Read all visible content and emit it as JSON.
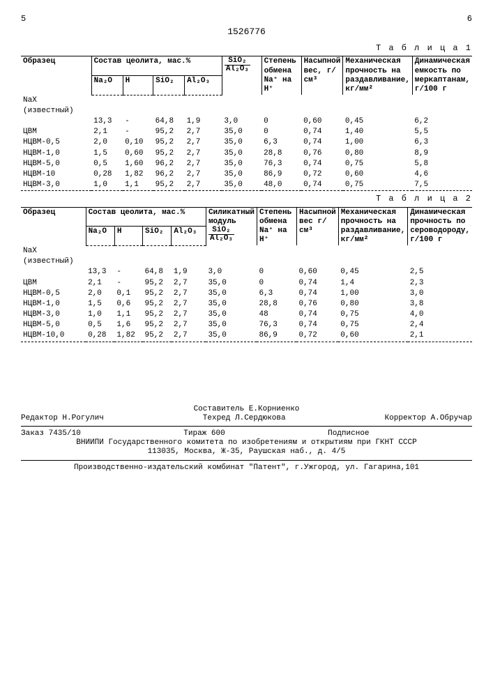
{
  "page_left": "5",
  "page_right": "6",
  "doc_number": "1526776",
  "table1": {
    "label": "Т а б л и ц а 1",
    "headers": {
      "sample": "Образец",
      "composition": "Состав цеолита, мас.%",
      "na2o": "Na₂O",
      "h": "H",
      "sio2": "SiO₂",
      "al2o3": "Al₂O₃",
      "ratio_num": "SiO₂",
      "ratio_den": "Al₂O₃",
      "exchange": "Степень обмена Na⁺ на H⁺",
      "bulk": "Насыпной вес, г/см³",
      "strength": "Механическая прочность на раздавливание, кг/мм²",
      "capacity": "Динамическая емкость по меркаптанам, г/100 г"
    },
    "row_label_nax": "NaX",
    "row_label_known": "(известный)",
    "rows": [
      {
        "s": "",
        "na": "13,3",
        "h": "-",
        "si": "64,8",
        "al": "1,9",
        "r": "3,0",
        "e": "0",
        "b": "0,60",
        "m": "0,45",
        "c": "6,2"
      },
      {
        "s": "ЦВМ",
        "na": "2,1",
        "h": "-",
        "si": "95,2",
        "al": "2,7",
        "r": "35,0",
        "e": "0",
        "b": "0,74",
        "m": "1,40",
        "c": "5,5"
      },
      {
        "s": "НЦВМ-0,5",
        "na": "2,0",
        "h": "0,10",
        "si": "95,2",
        "al": "2,7",
        "r": "35,0",
        "e": "6,3",
        "b": "0,74",
        "m": "1,00",
        "c": "6,3"
      },
      {
        "s": "НЦВМ-1,0",
        "na": "1,5",
        "h": "0,60",
        "si": "95,2",
        "al": "2,7",
        "r": "35,0",
        "e": "28,8",
        "b": "0,76",
        "m": "0,80",
        "c": "8,9"
      },
      {
        "s": "НЦВМ-5,0",
        "na": "0,5",
        "h": "1,60",
        "si": "96,2",
        "al": "2,7",
        "r": "35,0",
        "e": "76,3",
        "b": "0,74",
        "m": "0,75",
        "c": "5,8"
      },
      {
        "s": "НЦВМ-10",
        "na": "0,28",
        "h": "1,82",
        "si": "96,2",
        "al": "2,7",
        "r": "35,0",
        "e": "86,9",
        "b": "0,72",
        "m": "0,60",
        "c": "4,6"
      },
      {
        "s": "НЦВМ-3,0",
        "na": "1,0",
        "h": "1,1",
        "si": "95,2",
        "al": "2,7",
        "r": "35,0",
        "e": "48,0",
        "b": "0,74",
        "m": "0,75",
        "c": "7,5"
      }
    ]
  },
  "table2": {
    "label": "Т а б л и ц а 2",
    "headers": {
      "sample": "Образец",
      "composition": "Состав цеолита, мас.%",
      "na2o": "Na₂O",
      "h": "H",
      "sio2": "SiO₂",
      "al2o3": "Al₂O₃",
      "ratio_label": "Силикатный модуль",
      "ratio_num": "SiO₂",
      "ratio_den": "Al₂O₃",
      "exchange": "Степень обмена Na⁺ на H⁺",
      "bulk": "Насыпной вес г/см³",
      "strength": "Механическая прочность на раздавливание, кг/мм²",
      "capacity": "Динамическая прочность по сероводороду, г/100 г"
    },
    "row_label_nax": "NaX",
    "row_label_known": "(известный)",
    "rows": [
      {
        "s": "",
        "na": "13,3",
        "h": "-",
        "si": "64,8",
        "al": "1,9",
        "r": "3,0",
        "e": "0",
        "b": "0,60",
        "m": "0,45",
        "c": "2,5"
      },
      {
        "s": "ЦВМ",
        "na": "2,1",
        "h": "-",
        "si": "95,2",
        "al": "2,7",
        "r": "35,0",
        "e": "0",
        "b": "0,74",
        "m": "1,4",
        "c": "2,3"
      },
      {
        "s": "НЦВМ-0,5",
        "na": "2,0",
        "h": "0,1",
        "si": "95,2",
        "al": "2,7",
        "r": "35,0",
        "e": "6,3",
        "b": "0,74",
        "m": "1,00",
        "c": "3,0"
      },
      {
        "s": "НЦВМ-1,0",
        "na": "1,5",
        "h": "0,6",
        "si": "95,2",
        "al": "2,7",
        "r": "35,0",
        "e": "28,8",
        "b": "0,76",
        "m": "0,80",
        "c": "3,8"
      },
      {
        "s": "НЦВМ-3,0",
        "na": "1,0",
        "h": "1,1",
        "si": "95,2",
        "al": "2,7",
        "r": "35,0",
        "e": "48",
        "b": "0,74",
        "m": "0,75",
        "c": "4,0"
      },
      {
        "s": "НЦВМ-5,0",
        "na": "0,5",
        "h": "1,6",
        "si": "95,2",
        "al": "2,7",
        "r": "35,0",
        "e": "76,3",
        "b": "0,74",
        "m": "0,75",
        "c": "2,4"
      },
      {
        "s": "НЦВМ-10,0",
        "na": "0,28",
        "h": "1,82",
        "si": "95,2",
        "al": "2,7",
        "r": "35,0",
        "e": "86,9",
        "b": "0,72",
        "m": "0,60",
        "c": "2,1"
      }
    ]
  },
  "footer": {
    "compiler": "Составитель Е.Корниенко",
    "editor": "Редактор Н.Рогулич",
    "techred": "Техред Л.Сердюкова",
    "corrector": "Корректор А.Обручар",
    "order": "Заказ 7435/10",
    "tirazh": "Тираж 600",
    "sub": "Подписное",
    "vniipi": "ВНИИПИ Государственного комитета по изобретениям и открытиям при ГКНТ СССР",
    "address": "113035, Москва, Ж-35, Раушская наб., д. 4/5",
    "prod": "Производственно-издательский комбинат \"Патент\", г.Ужгород, ул. Гагарина,101"
  }
}
